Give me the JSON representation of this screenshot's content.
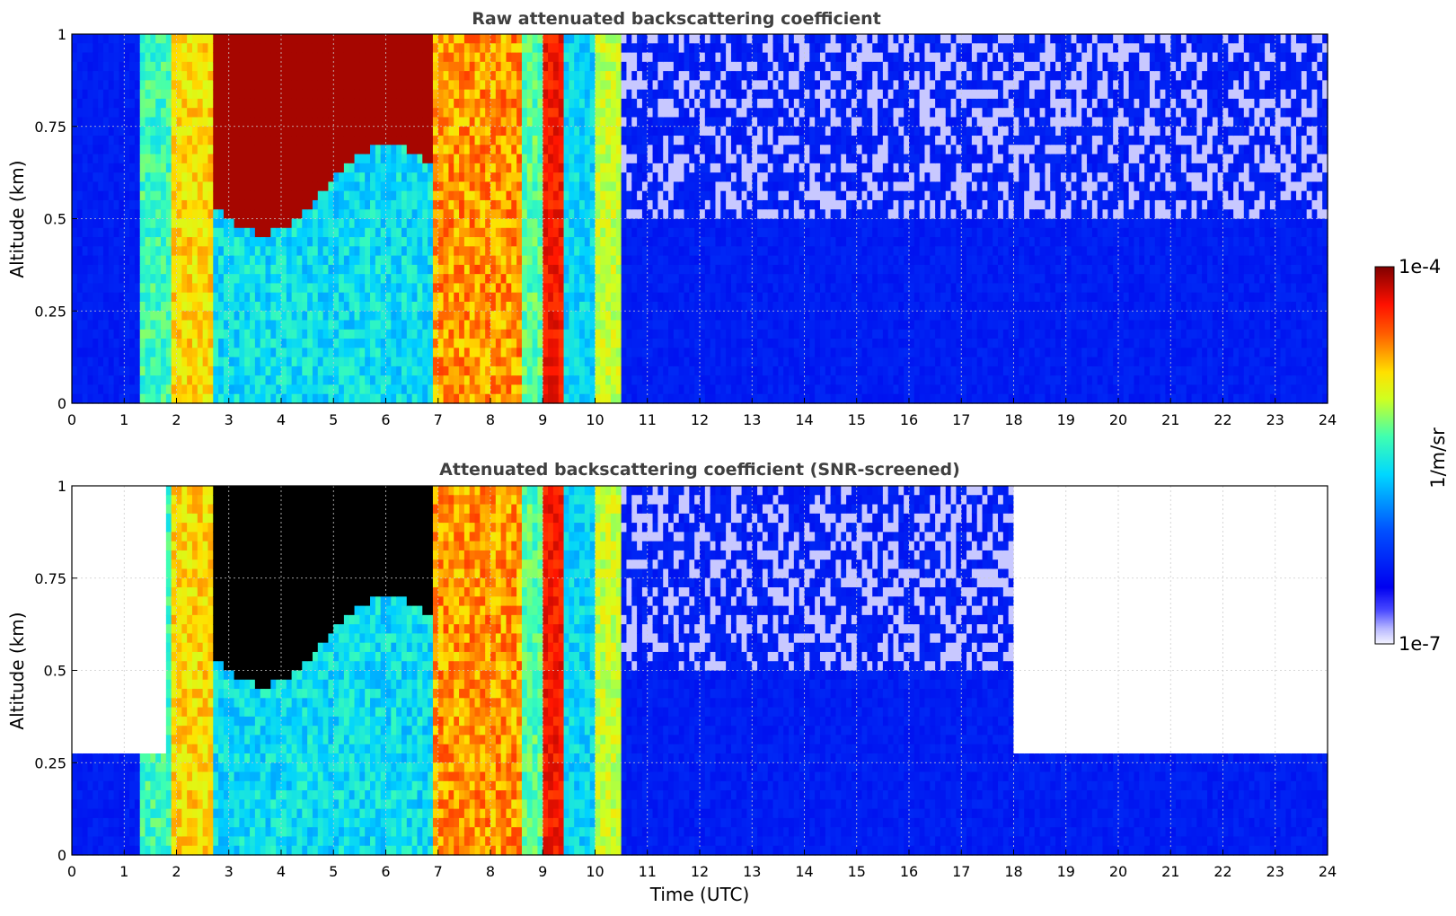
{
  "chart_data": [
    {
      "type": "heatmap",
      "title": "Raw attenuated backscattering coefficient",
      "xlabel": "",
      "ylabel": "Altitude (km)",
      "xlim": [
        0,
        24
      ],
      "ylim": [
        0,
        1
      ],
      "x_ticks": [
        "0",
        "1",
        "2",
        "3",
        "4",
        "5",
        "6",
        "7",
        "8",
        "9",
        "10",
        "11",
        "12",
        "13",
        "14",
        "15",
        "16",
        "17",
        "18",
        "19",
        "20",
        "21",
        "22",
        "23",
        "24"
      ],
      "y_ticks": [
        "0",
        "0.25",
        "0.5",
        "0.75",
        "1"
      ],
      "grid": true,
      "colorscale": "jet (log)",
      "features": [
        {
          "x": [
            1.3,
            1.9
          ],
          "y": [
            0,
            1
          ],
          "level": "green-cyan"
        },
        {
          "x": [
            2.0,
            2.7
          ],
          "y": [
            0,
            1
          ],
          "level": "yellow-orange"
        },
        {
          "x": [
            2.6,
            6.8
          ],
          "y": [
            0.55,
            1
          ],
          "level": "dark red (cloud layer)"
        },
        {
          "x": [
            7.0,
            8.6
          ],
          "y": [
            0,
            1
          ],
          "level": "orange-yellow"
        },
        {
          "x": [
            9.0,
            9.4
          ],
          "y": [
            0,
            1
          ],
          "level": "red"
        },
        {
          "x": [
            10.0,
            10.5
          ],
          "y": [
            0,
            1
          ],
          "level": "yellow-green"
        },
        {
          "x": [
            10.6,
            24
          ],
          "y": [
            0,
            1
          ],
          "level": "blue background, noisy above 0.5 km"
        }
      ]
    },
    {
      "type": "heatmap",
      "title": "Attenuated backscattering coefficient (SNR-screened)",
      "xlabel": "Time (UTC)",
      "ylabel": "Altitude (km)",
      "xlim": [
        0,
        24
      ],
      "ylim": [
        0,
        1
      ],
      "x_ticks": [
        "0",
        "1",
        "2",
        "3",
        "4",
        "5",
        "6",
        "7",
        "8",
        "9",
        "10",
        "11",
        "12",
        "13",
        "14",
        "15",
        "16",
        "17",
        "18",
        "19",
        "20",
        "21",
        "22",
        "23",
        "24"
      ],
      "y_ticks": [
        "0",
        "0.25",
        "0.5",
        "0.75",
        "1"
      ],
      "grid": true,
      "colorscale": "jet (log)",
      "features": [
        {
          "x": [
            0,
            1.8
          ],
          "y": [
            0,
            0.28
          ],
          "level": "blue (screened above)"
        },
        {
          "x": [
            1.8,
            2.7
          ],
          "y": [
            0,
            1
          ],
          "level": "yellow-orange"
        },
        {
          "x": [
            2.7,
            6.8
          ],
          "y": [
            0.55,
            0.95
          ],
          "level": "black (saturated cloud)"
        },
        {
          "x": [
            7.0,
            8.6
          ],
          "y": [
            0,
            1
          ],
          "level": "orange-yellow"
        },
        {
          "x": [
            10.6,
            18.0
          ],
          "y": [
            0,
            1
          ],
          "level": "blue, noisy above 0.5 km"
        },
        {
          "x": [
            18.0,
            24
          ],
          "y": [
            0,
            0.28
          ],
          "level": "blue (screened above)"
        }
      ]
    }
  ],
  "colorbar": {
    "label": "1/m/sr",
    "max_label": "1e-4",
    "min_label": "1e-7",
    "scale": "log"
  }
}
